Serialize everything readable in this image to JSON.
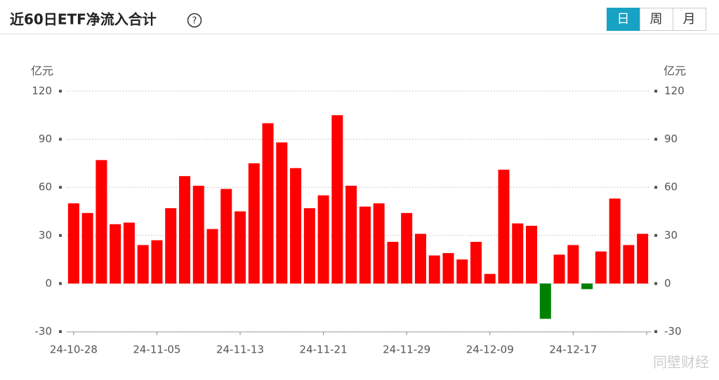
{
  "header": {
    "title": "近60日ETF净流入合计",
    "help": "?",
    "tabs": [
      "日",
      "周",
      "月"
    ],
    "active_tab": 0
  },
  "chart_data": {
    "type": "bar",
    "y_unit": "亿元",
    "y2_unit": "亿元",
    "categories": [
      "24-10-28",
      null,
      null,
      null,
      null,
      null,
      "24-11-05",
      null,
      null,
      null,
      null,
      null,
      "24-11-13",
      null,
      null,
      null,
      null,
      null,
      "24-11-21",
      null,
      null,
      null,
      null,
      null,
      "24-11-29",
      null,
      null,
      null,
      null,
      null,
      "24-12-09",
      null,
      null,
      null,
      null,
      null,
      "24-12-17",
      null,
      null,
      null,
      null,
      null
    ],
    "values": [
      50,
      44,
      77,
      37,
      38,
      24,
      27,
      47,
      67,
      61,
      34,
      59,
      45,
      75,
      100,
      88,
      72,
      47,
      55,
      105,
      61,
      48,
      50,
      26,
      44,
      31,
      17.5,
      19,
      15,
      26,
      6,
      71,
      37.5,
      36,
      -22,
      18,
      24,
      -3.5,
      20,
      53,
      24,
      31
    ],
    "positive_color": "#ff0000",
    "negative_color": "#008000",
    "ylim": [
      -30,
      120
    ],
    "yticks": [
      -30,
      0,
      30,
      60,
      90,
      120
    ],
    "y2lim": [
      -30,
      120
    ],
    "y2ticks": [
      -30,
      0,
      30,
      60,
      90,
      120
    ],
    "grid": true
  },
  "watermark": "同壁财经"
}
